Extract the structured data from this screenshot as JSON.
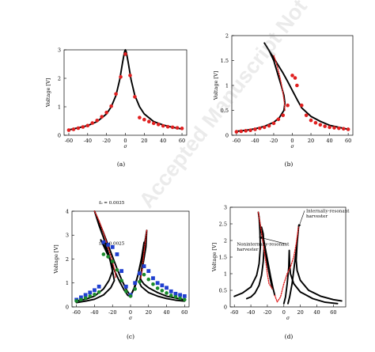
{
  "watermark": "Accepted Manuscript Not Copyedited",
  "chart_data": [
    {
      "type": "line",
      "panel_label": "(a)",
      "xlabel": "σ",
      "ylabel": "Voltage [V]",
      "xlim": [
        -65,
        65
      ],
      "ylim": [
        0,
        3
      ],
      "xticks": [
        -60,
        -40,
        -20,
        0,
        20,
        40,
        60
      ],
      "yticks": [
        0,
        1,
        2,
        3
      ],
      "xtick_labels": [
        "-60",
        "-40",
        "-20",
        "0",
        "20",
        "40",
        "60"
      ],
      "ytick_labels": [
        "0",
        "1",
        "2",
        "3"
      ],
      "series": [
        {
          "style": "solid",
          "color": "#000000",
          "x": [
            -60,
            -50,
            -40,
            -30,
            -20,
            -15,
            -10,
            -6,
            -3,
            -1,
            0,
            1,
            3,
            6,
            10,
            15,
            20,
            30,
            40,
            50,
            60
          ],
          "y": [
            0.19,
            0.26,
            0.34,
            0.48,
            0.75,
            1.0,
            1.4,
            1.95,
            2.55,
            2.92,
            3.0,
            2.92,
            2.55,
            1.95,
            1.4,
            1.0,
            0.75,
            0.48,
            0.36,
            0.28,
            0.22
          ]
        },
        {
          "style": "markers",
          "color": "#e02020",
          "x": [
            -60,
            -55,
            -50,
            -45,
            -40,
            -35,
            -30,
            -25,
            -20,
            -15,
            -10,
            -5,
            0,
            5,
            10,
            15,
            20,
            25,
            30,
            35,
            40,
            45,
            50,
            55,
            60
          ],
          "y": [
            0.18,
            0.21,
            0.25,
            0.29,
            0.34,
            0.43,
            0.52,
            0.65,
            0.8,
            1.02,
            1.45,
            2.05,
            2.85,
            2.1,
            1.35,
            0.62,
            0.55,
            0.48,
            0.42,
            0.38,
            0.33,
            0.3,
            0.28,
            0.26,
            0.24
          ]
        }
      ]
    },
    {
      "type": "line",
      "panel_label": "(b)",
      "xlabel": "σ",
      "ylabel": "Voltage [V]",
      "xlim": [
        -65,
        65
      ],
      "ylim": [
        0,
        2
      ],
      "xticks": [
        -60,
        -40,
        -20,
        0,
        20,
        40,
        60
      ],
      "yticks": [
        0,
        0.5,
        1,
        1.5,
        2
      ],
      "xtick_labels": [
        "-60",
        "-40",
        "-20",
        "0",
        "20",
        "40",
        "60"
      ],
      "ytick_labels": [
        "0",
        "0.5",
        "1",
        "1.5",
        "2"
      ],
      "series": [
        {
          "style": "solid",
          "color": "#000000",
          "x": [
            -60,
            -50,
            -40,
            -30,
            -20,
            -14,
            -9,
            -8,
            -9,
            -12,
            -16,
            -20,
            -25,
            -30,
            -25,
            -20,
            -15,
            -10,
            -5,
            0,
            5,
            10,
            20,
            30,
            40,
            50,
            60
          ],
          "y": [
            0.08,
            0.1,
            0.13,
            0.18,
            0.26,
            0.35,
            0.5,
            0.65,
            0.8,
            1.0,
            1.25,
            1.5,
            1.7,
            1.85,
            1.7,
            1.55,
            1.4,
            1.25,
            1.08,
            0.9,
            0.72,
            0.55,
            0.38,
            0.28,
            0.2,
            0.16,
            0.12
          ]
        },
        {
          "style": "dashed",
          "color": "#e02020",
          "x": [
            -8,
            -8.5,
            -10,
            -12,
            -15,
            -18,
            -20
          ],
          "y": [
            0.5,
            0.65,
            0.85,
            1.05,
            1.3,
            1.5,
            1.6
          ]
        },
        {
          "style": "markers",
          "color": "#e02020",
          "x": [
            -60,
            -55,
            -50,
            -45,
            -40,
            -35,
            -30,
            -25,
            -20,
            -15,
            -10,
            -5,
            0,
            3,
            5,
            10,
            15,
            20,
            25,
            30,
            35,
            40,
            45,
            50,
            55,
            60
          ],
          "y": [
            0.07,
            0.08,
            0.09,
            0.1,
            0.12,
            0.14,
            0.16,
            0.19,
            0.24,
            0.32,
            0.4,
            0.6,
            1.2,
            1.15,
            1.0,
            0.6,
            0.4,
            0.3,
            0.25,
            0.21,
            0.18,
            0.16,
            0.15,
            0.14,
            0.13,
            0.12
          ]
        }
      ]
    },
    {
      "type": "line",
      "panel_label": "(c)",
      "xlabel": "σ",
      "ylabel": "Voltage [V]",
      "xlim": [
        -65,
        65
      ],
      "ylim": [
        0,
        4
      ],
      "xticks": [
        -60,
        -40,
        -20,
        0,
        20,
        40,
        60
      ],
      "yticks": [
        0,
        1,
        2,
        3,
        4
      ],
      "xtick_labels": [
        "-60",
        "-40",
        "-20",
        "0",
        "20",
        "40",
        "60"
      ],
      "ytick_labels": [
        "0",
        "1",
        "2",
        "3",
        "4"
      ],
      "annotations": [
        {
          "text": "f₀ = 0.0035",
          "x": -35,
          "y": 4.3
        },
        {
          "text": "f₀ = 0.0025",
          "x": -35,
          "y": 2.6
        }
      ],
      "series": [
        {
          "style": "solid",
          "color": "#000000",
          "x": [
            -60,
            -50,
            -40,
            -30,
            -24,
            -20,
            -22,
            -25,
            -30,
            -35,
            -40,
            -35,
            -30,
            -25,
            -20,
            -15,
            -10,
            -5,
            0
          ],
          "y": [
            0.25,
            0.32,
            0.45,
            0.75,
            1.1,
            1.5,
            1.9,
            2.3,
            2.9,
            3.4,
            4.0,
            3.55,
            3.1,
            2.6,
            2.1,
            1.6,
            1.15,
            0.75,
            0.45
          ]
        },
        {
          "style": "solid",
          "color": "#000000",
          "x": [
            0,
            5,
            10,
            15,
            18,
            17,
            14,
            11,
            12,
            15,
            20,
            30,
            40,
            50,
            60
          ],
          "y": [
            0.45,
            0.85,
            1.6,
            2.5,
            3.2,
            2.5,
            1.8,
            1.2,
            1.1,
            0.95,
            0.8,
            0.6,
            0.45,
            0.37,
            0.3
          ]
        },
        {
          "style": "solid",
          "color": "#000000",
          "x": [
            -60,
            -50,
            -40,
            -30,
            -22,
            -18,
            -20,
            -23,
            -28,
            -33,
            -28,
            -22,
            -17,
            -12,
            -7,
            -3,
            0
          ],
          "y": [
            0.18,
            0.24,
            0.32,
            0.5,
            0.8,
            1.1,
            1.5,
            2.0,
            2.5,
            2.8,
            2.4,
            1.9,
            1.45,
            1.05,
            0.7,
            0.48,
            0.45
          ]
        },
        {
          "style": "solid",
          "color": "#000000",
          "x": [
            0,
            4,
            8,
            12,
            15,
            14,
            12,
            10,
            12,
            20,
            30,
            40,
            50,
            60
          ],
          "y": [
            0.45,
            0.8,
            1.3,
            2.0,
            2.7,
            2.1,
            1.5,
            1.0,
            0.85,
            0.6,
            0.45,
            0.35,
            0.28,
            0.24
          ]
        },
        {
          "style": "dashed",
          "color": "#e02020",
          "x": [
            -40,
            -35,
            -30,
            -25,
            -20,
            -17,
            -16.5
          ],
          "y": [
            4.0,
            3.6,
            3.1,
            2.5,
            1.9,
            1.45,
            1.2
          ]
        },
        {
          "style": "dashed",
          "color": "#e02020",
          "x": [
            18,
            15,
            13,
            11.5
          ],
          "y": [
            3.2,
            2.3,
            1.6,
            1.2
          ]
        },
        {
          "style": "markers",
          "marker": "square",
          "color": "#1f3fd0",
          "x": [
            -60,
            -55,
            -50,
            -45,
            -40,
            -35,
            -30,
            -25,
            -20,
            -15,
            -10,
            -5,
            0,
            5,
            10,
            15,
            20,
            25,
            30,
            35,
            40,
            45,
            50,
            55,
            60
          ],
          "y": [
            0.3,
            0.4,
            0.5,
            0.6,
            0.7,
            0.85,
            2.7,
            2.6,
            2.5,
            2.2,
            1.5,
            0.85,
            0.5,
            1.0,
            1.4,
            1.7,
            1.5,
            1.2,
            1.0,
            0.9,
            0.8,
            0.65,
            0.55,
            0.5,
            0.45
          ]
        },
        {
          "style": "markers",
          "marker": "circle",
          "color": "#1a8a2a",
          "x": [
            -60,
            -55,
            -50,
            -45,
            -40,
            -35,
            -30,
            -25,
            -20,
            -15,
            -10,
            -5,
            0,
            5,
            10,
            15,
            20,
            25,
            30,
            35,
            40,
            45,
            50,
            55,
            60
          ],
          "y": [
            0.25,
            0.3,
            0.37,
            0.45,
            0.52,
            0.62,
            2.2,
            2.1,
            1.9,
            1.55,
            1.1,
            0.65,
            0.45,
            0.75,
            1.05,
            1.35,
            1.15,
            0.95,
            0.78,
            0.68,
            0.58,
            0.48,
            0.42,
            0.36,
            0.3
          ]
        }
      ]
    },
    {
      "type": "line",
      "panel_label": "(d)",
      "xlabel": "σ",
      "ylabel": "Voltage [V]",
      "xlim": [
        -65,
        75
      ],
      "ylim": [
        0,
        3
      ],
      "xticks": [
        -60,
        -40,
        -20,
        0,
        20,
        40,
        60
      ],
      "yticks": [
        0,
        0.5,
        1,
        1.5,
        2,
        2.5,
        3
      ],
      "xtick_labels": [
        "-60",
        "-40",
        "-20",
        "0",
        "20",
        "40",
        "60"
      ],
      "ytick_labels": [
        "0",
        "0.5",
        "1",
        "1.5",
        "2",
        "2.5",
        "3"
      ],
      "annotations": [
        {
          "text": "Internally-resonant",
          "text2": "harvester",
          "x": 27,
          "y": 2.85,
          "arrow_to": [
            18,
            2.4
          ]
        },
        {
          "text": "Noninternally-resonant",
          "text2": "harvester",
          "x": -57,
          "y": 1.85,
          "arrow_to": [
            -30,
            2.1
          ]
        }
      ],
      "series": [
        {
          "style": "solid",
          "color": "#000000",
          "x": [
            -60,
            -50,
            -40,
            -33,
            -30,
            -28.5,
            -29,
            -30,
            -31,
            -29,
            -26,
            -23,
            -20,
            -17,
            -14
          ],
          "y": [
            0.32,
            0.42,
            0.6,
            0.95,
            1.3,
            1.8,
            2.3,
            2.7,
            2.85,
            2.5,
            2.1,
            1.7,
            1.3,
            0.9,
            0.55
          ]
        },
        {
          "style": "solid",
          "color": "#000000",
          "x": [
            -45,
            -40,
            -35,
            -30,
            -27,
            -25,
            -24,
            -25,
            -27,
            -25,
            -22,
            -19,
            -16,
            -13,
            -11
          ],
          "y": [
            0.25,
            0.3,
            0.42,
            0.65,
            0.95,
            1.35,
            1.8,
            2.2,
            2.4,
            2.1,
            1.7,
            1.3,
            0.9,
            0.55,
            0.35
          ]
        },
        {
          "style": "solid",
          "color": "#000000",
          "x": [
            5,
            7,
            10,
            13,
            16,
            18,
            16,
            15,
            16,
            20,
            30,
            45,
            60,
            70
          ],
          "y": [
            0.1,
            0.3,
            0.7,
            1.3,
            1.9,
            2.45,
            1.9,
            1.4,
            1.1,
            0.8,
            0.5,
            0.32,
            0.22,
            0.18
          ]
        },
        {
          "style": "solid",
          "color": "#000000",
          "x": [
            0,
            2,
            4,
            6,
            6.5,
            7,
            8,
            12,
            20,
            35,
            50,
            65
          ],
          "y": [
            0.1,
            0.3,
            0.7,
            1.2,
            1.7,
            1.3,
            1.0,
            0.7,
            0.45,
            0.25,
            0.14,
            0.1
          ]
        },
        {
          "style": "dashed",
          "color": "#e02020",
          "x": [
            -31,
            -28,
            -25,
            -22,
            -20,
            -18,
            -14
          ],
          "y": [
            2.85,
            2.4,
            1.9,
            1.4,
            1.0,
            0.7,
            0.55
          ]
        },
        {
          "style": "dashed",
          "color": "#e02020",
          "x": [
            -11,
            -8,
            -4,
            0,
            4,
            8,
            12,
            15,
            18
          ],
          "y": [
            0.35,
            0.15,
            0.3,
            0.7,
            1.0,
            1.2,
            1.5,
            1.9,
            2.45
          ]
        }
      ]
    }
  ]
}
